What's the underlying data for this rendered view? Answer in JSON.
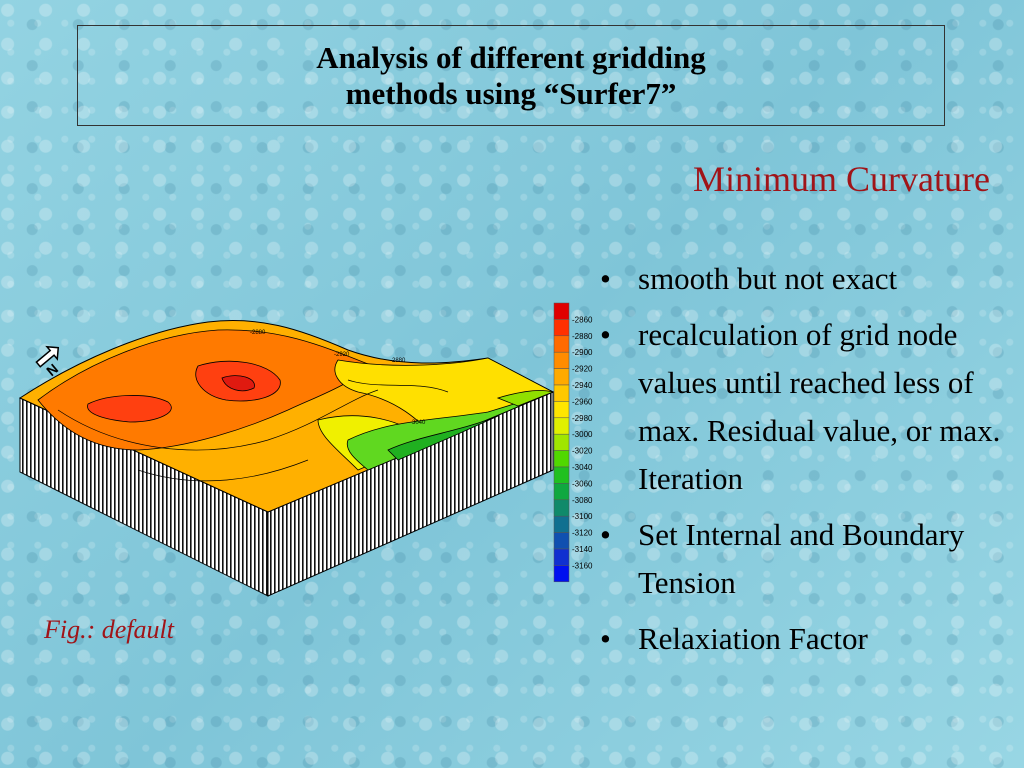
{
  "title": {
    "line1": "Analysis of different gridding",
    "line2": "methods using “Surfer7”"
  },
  "subtitle": "Minimum Curvature",
  "bullets": [
    {
      "text": "smooth but not exact"
    },
    {
      "text": "recalculation of grid node values until reached less of max. Residual value, or max. Iteration"
    },
    {
      "text": "Set Internal and Boundary Tension"
    },
    {
      "text": "Relaxiation Factor"
    }
  ],
  "bullet_glyph": "•",
  "caption": "Fig.: default",
  "compass": {
    "label": "N"
  },
  "legend": {
    "colors": [
      "#e00000",
      "#ff3000",
      "#ff6a00",
      "#ff8c00",
      "#ffaa00",
      "#ffc800",
      "#ffe600",
      "#e0f000",
      "#a0e600",
      "#50d800",
      "#20c020",
      "#10a840",
      "#108a6a",
      "#107090",
      "#1050b0",
      "#1030d0",
      "#0010f0"
    ],
    "labels": [
      "-2860",
      "-2880",
      "-2900",
      "-2920",
      "-2940",
      "-2960",
      "-2980",
      "-3000",
      "-3020",
      "-3040",
      "-3060",
      "-3080",
      "-3100",
      "-3120",
      "-3140",
      "-3160"
    ]
  },
  "contour_labels": [
    "-2880",
    "-2880",
    "-2920",
    "-3040"
  ]
}
